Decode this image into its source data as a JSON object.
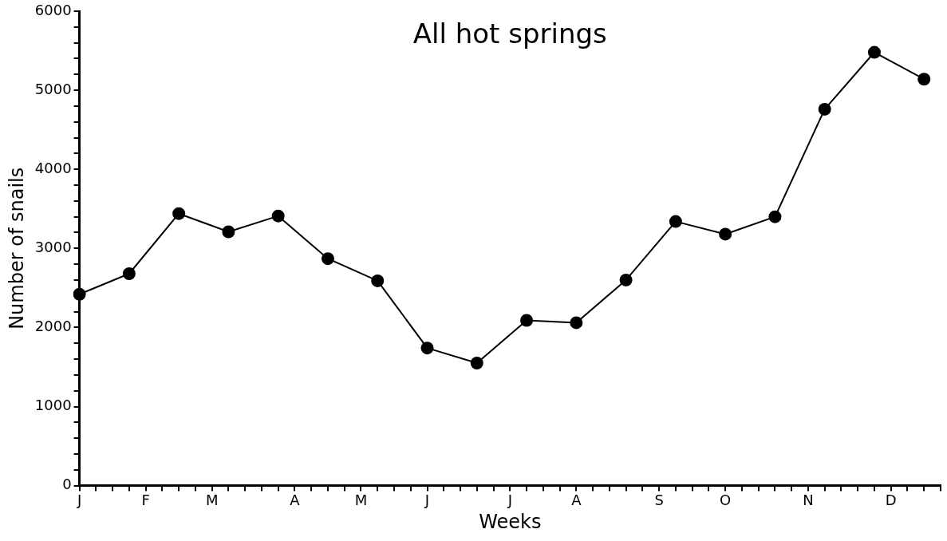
{
  "chart_data": {
    "type": "line",
    "title": "All hot springs",
    "xlabel": "Weeks",
    "ylabel": "Number of snails",
    "categories": [
      "J",
      null,
      null,
      null,
      "F",
      null,
      null,
      null,
      "M",
      null,
      null,
      null,
      null,
      "A",
      null,
      null,
      null,
      "M",
      null,
      null,
      null,
      "J",
      null,
      null,
      null,
      null,
      "J",
      null,
      null,
      null,
      "A",
      null,
      null,
      null,
      null,
      "S",
      null,
      null,
      null,
      "O",
      null,
      null,
      null,
      null,
      "N",
      null,
      null,
      null,
      null,
      "D",
      null,
      null,
      null
    ],
    "series": [
      {
        "color": "#000000",
        "values": [
          2420,
          null,
          null,
          2680,
          null,
          null,
          3440,
          null,
          null,
          3210,
          null,
          null,
          3410,
          null,
          null,
          2870,
          null,
          null,
          2590,
          null,
          null,
          1740,
          null,
          null,
          1550,
          null,
          null,
          2090,
          null,
          null,
          2060,
          null,
          null,
          2600,
          null,
          null,
          3340,
          null,
          null,
          3180,
          null,
          null,
          3400,
          null,
          null,
          4760,
          null,
          null,
          5480,
          null,
          null,
          5140,
          null
        ]
      }
    ],
    "ylim": [
      0,
      6000
    ],
    "yticks": [
      0,
      {
        "value": 200,
        "label": null
      },
      {
        "value": 400,
        "label": null
      },
      {
        "value": 600,
        "label": null
      },
      {
        "value": 800,
        "label": null
      },
      1000,
      {
        "value": 1200,
        "label": null
      },
      {
        "value": 1400,
        "label": null
      },
      {
        "value": 1600,
        "label": null
      },
      {
        "value": 1800,
        "label": null
      },
      2000,
      {
        "value": 2200,
        "label": null
      },
      {
        "value": 2400,
        "label": null
      },
      {
        "value": 2600,
        "label": null
      },
      {
        "value": 2800,
        "label": null
      },
      3000,
      {
        "value": 3200,
        "label": null
      },
      {
        "value": 3400,
        "label": null
      },
      {
        "value": 3600,
        "label": null
      },
      {
        "value": 3800,
        "label": null
      },
      4000,
      {
        "value": 4200,
        "label": null
      },
      {
        "value": 4400,
        "label": null
      },
      {
        "value": 4600,
        "label": null
      },
      {
        "value": 4800,
        "label": null
      },
      5000,
      {
        "value": 5200,
        "label": null
      },
      {
        "value": 5400,
        "label": null
      },
      {
        "value": 5600,
        "label": null
      },
      {
        "value": 5800,
        "label": null
      },
      6000
    ],
    "grid": false,
    "legend": false,
    "marker": "circle",
    "line_style": "solid"
  }
}
